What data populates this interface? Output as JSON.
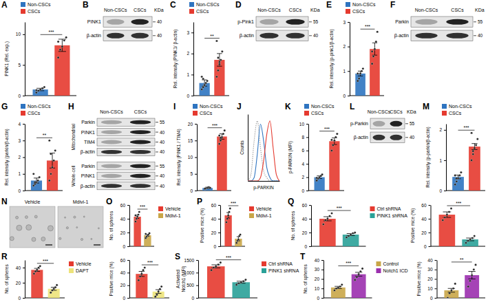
{
  "chart_data": [
    {
      "type": "bar",
      "panel": "A",
      "legend": "top",
      "series": [
        {
          "name": "Non-CSCs",
          "color": "#2e74c0"
        },
        {
          "name": "CSCs",
          "color": "#e53a2f"
        }
      ],
      "plots": [
        {
          "ylabel": "PINK1 (Rel. exp.)",
          "ylim": [
            0,
            12
          ],
          "yticks": [
            0,
            5,
            10
          ],
          "values": [
            1,
            8.2
          ],
          "errors": [
            0.2,
            1.0
          ],
          "points": [
            [
              0.5,
              0.8,
              1.0,
              1.2,
              1.4,
              0.9
            ],
            [
              6.2,
              7.5,
              8.0,
              9.0,
              9.5,
              8.8
            ]
          ],
          "annotation": "***"
        }
      ]
    },
    {
      "type": "blot",
      "panel": "B",
      "columns": [
        "Non-CSCs",
        "CSCs"
      ],
      "unit": "KDa",
      "sections": [
        {
          "rows": [
            {
              "label": "PINK1",
              "marker": 40
            },
            {
              "label": "β-actin",
              "marker": 40
            }
          ]
        }
      ]
    },
    {
      "type": "bar",
      "panel": "C",
      "legend": "top",
      "series": [
        {
          "name": "Non-CSCs",
          "color": "#2e74c0"
        },
        {
          "name": "CSCs",
          "color": "#e53a2f"
        }
      ],
      "plots": [
        {
          "ylabel": "Rel. intensity (PINK1/ β-actin)",
          "ylim": [
            0,
            3.5
          ],
          "yticks": [
            0,
            1,
            2,
            3
          ],
          "values": [
            0.6,
            1.7
          ],
          "errors": [
            0.15,
            0.3
          ],
          "points": [
            [
              0.3,
              0.4,
              0.5,
              0.6,
              0.7,
              0.9,
              0.8,
              0.5
            ],
            [
              0.9,
              1.2,
              1.5,
              1.7,
              2.1,
              2.6,
              1.8,
              1.6
            ]
          ],
          "annotation": "**"
        }
      ]
    },
    {
      "type": "blot",
      "panel": "D",
      "columns": [
        "Non-CSCs",
        "CSCs"
      ],
      "unit": "KDa",
      "sections": [
        {
          "rows": [
            {
              "label": "p-Pink1",
              "marker": 55
            },
            {
              "label": "β-actin",
              "marker": 40
            }
          ]
        }
      ]
    },
    {
      "type": "bar",
      "panel": "E",
      "legend": "top",
      "series": [
        {
          "name": "Non-CSCs",
          "color": "#2e74c0"
        },
        {
          "name": "CSCs",
          "color": "#e53a2f"
        }
      ],
      "plots": [
        {
          "ylabel": "Rel. intensity (p-pink1/β-actin)",
          "ylim": [
            0,
            3
          ],
          "yticks": [
            0,
            1,
            2,
            3
          ],
          "values": [
            0.9,
            1.9
          ],
          "errors": [
            0.1,
            0.25
          ],
          "points": [
            [
              0.6,
              0.7,
              0.9,
              1.0,
              1.1,
              0.9
            ],
            [
              1.3,
              1.6,
              1.9,
              2.2,
              2.6,
              1.8
            ]
          ],
          "annotation": "***"
        }
      ]
    },
    {
      "type": "blot",
      "panel": "F",
      "columns": [
        "Non-CSCs",
        "CSCs"
      ],
      "unit": "KDa",
      "sections": [
        {
          "rows": [
            {
              "label": "Parkin",
              "marker": 55
            },
            {
              "label": "β-actin",
              "marker": 40
            }
          ]
        }
      ]
    },
    {
      "type": "bar",
      "panel": "G",
      "legend": "top",
      "series": [
        {
          "name": "Non-CSCs",
          "color": "#2e74c0"
        },
        {
          "name": "CSCs",
          "color": "#e53a2f"
        }
      ],
      "plots": [
        {
          "ylabel": "Rel. intensity (parkin/β-actin)",
          "ylim": [
            0,
            4
          ],
          "yticks": [
            0,
            1,
            2,
            3,
            4
          ],
          "values": [
            0.6,
            1.8
          ],
          "errors": [
            0.15,
            0.45
          ],
          "points": [
            [
              0.3,
              0.4,
              0.5,
              0.6,
              0.8,
              1.0,
              0.5
            ],
            [
              0.6,
              1.0,
              1.4,
              1.8,
              2.4,
              3.0,
              2.2
            ]
          ],
          "annotation": "**"
        }
      ]
    },
    {
      "type": "blot",
      "panel": "H",
      "columns": [
        "Non-CSCs",
        "CSCs"
      ],
      "sections": [
        {
          "name": "Mitochondrial",
          "rows": [
            {
              "label": "Parkin",
              "marker": 55
            },
            {
              "label": "PINK1",
              "marker": 40
            },
            {
              "label": "TIM4",
              "marker": 40
            },
            {
              "label": "β-actin",
              "marker": 40
            }
          ]
        },
        {
          "name": "Whole-cell",
          "rows": [
            {
              "label": "Parkin",
              "marker": 55
            },
            {
              "label": "PINK1",
              "marker": 40
            },
            {
              "label": "β-actin",
              "marker": 40
            }
          ]
        }
      ]
    },
    {
      "type": "bar",
      "panel": "I",
      "legend": "top",
      "series": [
        {
          "name": "Non-CSCs",
          "color": "#2e74c0"
        },
        {
          "name": "CSCs",
          "color": "#e53a2f"
        }
      ],
      "plots": [
        {
          "ylabel": "Rel. intensity (PINK1 / TIM4)",
          "ylim": [
            0,
            20
          ],
          "yticks": [
            0,
            5,
            10,
            15,
            20
          ],
          "values": [
            0.8,
            16.2
          ],
          "errors": [
            0.2,
            0.8
          ],
          "points": [
            [
              0.5,
              0.7,
              0.9,
              1.0,
              0.8,
              0.6
            ],
            [
              14,
              15,
              16,
              17,
              18,
              16.5,
              15.8
            ]
          ],
          "annotation": "***"
        }
      ]
    },
    {
      "type": "line",
      "panel": "J",
      "xlabel": "p-PARKIN",
      "ylabel": "Counts",
      "tick_labels": false,
      "x": [
        0,
        1,
        2,
        3,
        4,
        5,
        6,
        7,
        8,
        9,
        10
      ],
      "xlim": [
        0,
        10
      ],
      "ylim": [
        0,
        1
      ],
      "series": [
        {
          "color": "#9e9e9e",
          "line_style": "dotted",
          "values": [
            0,
            0.1,
            0.6,
            0.9,
            0.5,
            0.15,
            0.05,
            0,
            0,
            0,
            0
          ]
        },
        {
          "color": "#2e74c0",
          "line_style": "solid",
          "values": [
            0,
            0,
            0.05,
            0.4,
            0.85,
            0.6,
            0.2,
            0.05,
            0,
            0,
            0
          ]
        },
        {
          "color": "#e53a2f",
          "line_style": "solid",
          "values": [
            0,
            0,
            0,
            0,
            0.05,
            0.3,
            0.7,
            0.9,
            0.5,
            0.1,
            0
          ]
        }
      ]
    },
    {
      "type": "bar",
      "panel": "K",
      "legend": "top",
      "series": [
        {
          "name": "Non-CSCs",
          "color": "#2e74c0"
        },
        {
          "name": "CSCs",
          "color": "#e53a2f"
        }
      ],
      "plots": [
        {
          "ylabel": "p-PARKIN (MFI)",
          "ylim": [
            0,
            10
          ],
          "yticks": [
            0,
            2,
            4,
            6,
            8,
            10
          ],
          "values": [
            2,
            7.4
          ],
          "errors": [
            0.2,
            0.5
          ],
          "points": [
            [
              1.5,
              1.8,
              2.0,
              2.2,
              2.4,
              1.9
            ],
            [
              6.0,
              6.8,
              7.5,
              8.0,
              8.5,
              7.6
            ]
          ],
          "annotation": "***"
        }
      ]
    },
    {
      "type": "blot",
      "panel": "L",
      "columns": [
        "Non-CSCs",
        "CSCs"
      ],
      "unit": "KDa",
      "sections": [
        {
          "rows": [
            {
              "label": "p-Parkin",
              "marker": 55
            },
            {
              "label": "β-actin",
              "marker": 40
            }
          ]
        }
      ]
    },
    {
      "type": "bar",
      "panel": "M",
      "legend": "top",
      "series": [
        {
          "name": "Non-CSCs",
          "color": "#2e74c0"
        },
        {
          "name": "CSCs",
          "color": "#e53a2f"
        }
      ],
      "plots": [
        {
          "ylabel": "Rel. intensity (p-parkin/β-actin)",
          "ylim": [
            0,
            2.2
          ],
          "yticks": [
            0,
            1,
            2
          ],
          "values": [
            0.45,
            1.45
          ],
          "errors": [
            0.06,
            0.1
          ],
          "points": [
            [
              0.2,
              0.3,
              0.4,
              0.5,
              0.6,
              0.5,
              0.4
            ],
            [
              1.0,
              1.2,
              1.4,
              1.5,
              1.7,
              1.9,
              1.3
            ]
          ],
          "annotation": "***"
        }
      ]
    },
    {
      "type": "image",
      "panel": "N",
      "images": [
        "Vehicle",
        "Mdivi-1"
      ]
    },
    {
      "type": "bar",
      "panel": "O",
      "legend": "right",
      "series": [
        {
          "name": "Vehicle",
          "color": "#e53a2f"
        },
        {
          "name": "Mdivi-1",
          "color": "#c9a648"
        }
      ],
      "plots": [
        {
          "ylabel": "No. of spheres",
          "ylim": [
            0,
            60
          ],
          "yticks": [
            0,
            20,
            40,
            60
          ],
          "values": [
            43,
            16
          ],
          "errors": [
            2.5,
            1.5
          ],
          "points": [
            [
              36,
              40,
              43,
              46,
              50,
              45
            ],
            [
              12,
              14,
              16,
              17,
              19,
              18
            ]
          ],
          "annotation": "***"
        }
      ]
    },
    {
      "type": "bar",
      "panel": "P",
      "legend": "right",
      "series": [
        {
          "name": "Vehicle",
          "color": "#e53a2f"
        },
        {
          "name": "Mdivi-1",
          "color": "#c9a648"
        }
      ],
      "plots": [
        {
          "ylabel": "Positive mice (%)",
          "ylim": [
            0,
            60
          ],
          "yticks": [
            0,
            20,
            40,
            60
          ],
          "values": [
            45,
            11
          ],
          "errors": [
            4,
            3
          ],
          "points": [
            [
              35,
              40,
              45,
              50,
              55
            ],
            [
              5,
              8,
              10,
              15,
              17
            ]
          ],
          "annotation": "***"
        }
      ]
    },
    {
      "type": "bar",
      "panel": "Q",
      "legend": "right",
      "series": [
        {
          "name": "Ctrl shRNA",
          "color": "#e53a2f"
        },
        {
          "name": "PINK1 shRNA",
          "color": "#2aa198"
        }
      ],
      "plots": [
        {
          "ylabel": "No. of spheres",
          "ylim": [
            0,
            60
          ],
          "yticks": [
            0,
            20,
            40,
            60
          ],
          "values": [
            40,
            17
          ],
          "errors": [
            3,
            1.5
          ],
          "points": [
            [
              32,
              38,
              40,
              44,
              48
            ],
            [
              13,
              15,
              17,
              19,
              20
            ]
          ],
          "annotation": "***"
        },
        {
          "ylabel": "Positive mice (%)",
          "ylim": [
            0,
            60
          ],
          "yticks": [
            0,
            20,
            40,
            60
          ],
          "values": [
            46,
            10
          ],
          "errors": [
            4,
            2
          ],
          "points": [
            [
              38,
              42,
              46,
              50,
              55
            ],
            [
              5,
              8,
              10,
              12,
              15
            ]
          ],
          "annotation": "***"
        }
      ]
    },
    {
      "type": "bar",
      "panel": "R",
      "legend": "right",
      "series": [
        {
          "name": "Vehicle",
          "color": "#e53a2f"
        },
        {
          "name": "DAPT",
          "color": "#ede37a"
        }
      ],
      "plots": [
        {
          "ylabel": "No. of spheres",
          "ylim": [
            0,
            50
          ],
          "yticks": [
            0,
            20,
            40
          ],
          "values": [
            37,
            12
          ],
          "errors": [
            2,
            2
          ],
          "points": [
            [
              32,
              35,
              37,
              40,
              42
            ],
            [
              7,
              10,
              12,
              14,
              17
            ]
          ],
          "annotation": "***"
        },
        {
          "ylabel": "Positive mice (%)",
          "ylim": [
            0,
            60
          ],
          "yticks": [
            0,
            20,
            40,
            60
          ],
          "values": [
            38,
            10
          ],
          "errors": [
            4,
            3
          ],
          "points": [
            [
              28,
              34,
              38,
              44,
              48
            ],
            [
              2,
              5,
              10,
              14,
              18
            ]
          ],
          "annotation": "***"
        }
      ]
    },
    {
      "type": "bar",
      "panel": "S",
      "legend": "right",
      "series": [
        {
          "name": "Ctrl shRNA",
          "color": "#e53a2f"
        },
        {
          "name": "PINK1 shRNA",
          "color": "#2aa198"
        }
      ],
      "plots": [
        {
          "ylabel": "Activated Notch1 (MFI)",
          "ylim": [
            0,
            1500
          ],
          "yticks": [
            0,
            500,
            1000,
            1500
          ],
          "values": [
            1250,
            620
          ],
          "errors": [
            60,
            40
          ],
          "points": [
            [
              1100,
              1200,
              1250,
              1320,
              1400
            ],
            [
              520,
              580,
              620,
              660,
              720
            ]
          ],
          "annotation": "***"
        }
      ]
    },
    {
      "type": "bar",
      "panel": "T",
      "legend": "right",
      "series": [
        {
          "name": "Control",
          "color": "#c9a648"
        },
        {
          "name": "Notch1 ICD",
          "color": "#9b2fae"
        }
      ],
      "plots": [
        {
          "ylabel": "No. of spheres",
          "ylim": [
            0,
            40
          ],
          "yticks": [
            0,
            10,
            20,
            30,
            40
          ],
          "values": [
            11,
            25
          ],
          "errors": [
            1.2,
            2
          ],
          "points": [
            [
              8,
              10,
              11,
              12,
              14
            ],
            [
              19,
              22,
              25,
              28,
              31
            ]
          ],
          "annotation": "***"
        },
        {
          "ylabel": "Positive mice (%)",
          "ylim": [
            0,
            40
          ],
          "yticks": [
            0,
            10,
            20,
            30,
            40
          ],
          "values": [
            8,
            24
          ],
          "errors": [
            2,
            4
          ],
          "points": [
            [
              0,
              5,
              8,
              10,
              15
            ],
            [
              12,
              18,
              24,
              30,
              35
            ]
          ],
          "annotation": "**"
        }
      ]
    }
  ]
}
